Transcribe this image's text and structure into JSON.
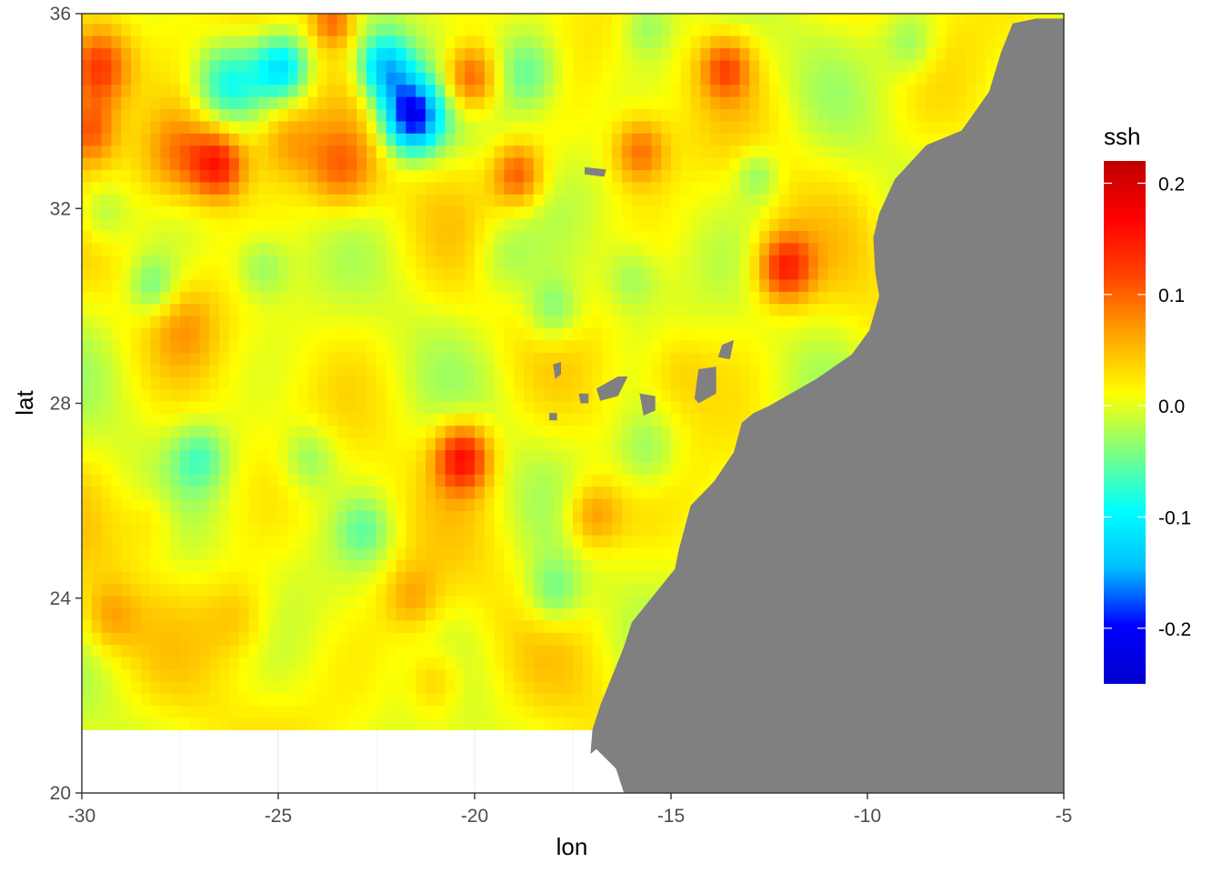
{
  "chart_data": {
    "type": "heatmap",
    "title": "",
    "xlabel": "lon",
    "ylabel": "lat",
    "xlim": [
      -30,
      -5
    ],
    "ylim": [
      20,
      36
    ],
    "x_ticks": [
      -30,
      -25,
      -20,
      -15,
      -10,
      -5
    ],
    "y_ticks": [
      20,
      24,
      28,
      32,
      36
    ],
    "x_tick_labels": [
      "-30",
      "-25",
      "-20",
      "-15",
      "-10",
      "-5"
    ],
    "y_tick_labels": [
      "20",
      "24",
      "28",
      "32",
      "36"
    ],
    "grid": true,
    "value_name": "ssh",
    "colorbar": {
      "title": "ssh",
      "range": [
        -0.25,
        0.22
      ],
      "ticks": [
        0.2,
        0.1,
        0.0,
        -0.1,
        -0.2
      ],
      "tick_labels": [
        "0.2",
        "0.1",
        "0.0",
        "-0.1",
        "-0.2"
      ],
      "colors": [
        "#0000CD",
        "#0000FF",
        "#00BFFF",
        "#00FFFF",
        "#7FFF7F",
        "#FFFF00",
        "#FFA500",
        "#FF4500",
        "#FF0000",
        "#C00000"
      ],
      "placement": "right"
    },
    "data_extent": {
      "lon": [
        -30,
        -5
      ],
      "lat": [
        21.3,
        36
      ]
    },
    "background_value": 0.01,
    "features": [
      {
        "lon": -29.6,
        "lat": 34.9,
        "value": 0.14,
        "radius": 0.6
      },
      {
        "lon": -29.8,
        "lat": 33.6,
        "value": 0.1,
        "radius": 0.5
      },
      {
        "lon": -26.5,
        "lat": 32.9,
        "value": 0.13,
        "radius": 0.5
      },
      {
        "lon": -27.5,
        "lat": 33.1,
        "value": 0.08,
        "radius": 0.7
      },
      {
        "lon": -23.4,
        "lat": 32.8,
        "value": 0.08,
        "radius": 0.6
      },
      {
        "lon": -24.8,
        "lat": 33.4,
        "value": 0.06,
        "radius": 0.6
      },
      {
        "lon": -23.6,
        "lat": 35.9,
        "value": 0.09,
        "radius": 0.4
      },
      {
        "lon": -24.9,
        "lat": 34.9,
        "value": -0.12,
        "radius": 0.5
      },
      {
        "lon": -26.3,
        "lat": 34.6,
        "value": -0.09,
        "radius": 0.6
      },
      {
        "lon": -22.3,
        "lat": 34.9,
        "value": -0.15,
        "radius": 0.5
      },
      {
        "lon": -21.6,
        "lat": 33.9,
        "value": -0.22,
        "radius": 0.55
      },
      {
        "lon": -20.1,
        "lat": 34.7,
        "value": 0.12,
        "radius": 0.5
      },
      {
        "lon": -18.6,
        "lat": 34.8,
        "value": -0.07,
        "radius": 0.6
      },
      {
        "lon": -18.9,
        "lat": 32.7,
        "value": 0.1,
        "radius": 0.45
      },
      {
        "lon": -15.8,
        "lat": 33.2,
        "value": 0.09,
        "radius": 0.5
      },
      {
        "lon": -13.6,
        "lat": 34.9,
        "value": 0.09,
        "radius": 0.45
      },
      {
        "lon": -12.1,
        "lat": 30.8,
        "value": 0.13,
        "radius": 0.5
      },
      {
        "lon": -20.3,
        "lat": 26.9,
        "value": 0.15,
        "radius": 0.5
      },
      {
        "lon": -17.0,
        "lat": 25.7,
        "value": 0.07,
        "radius": 0.5
      },
      {
        "lon": -18.0,
        "lat": 29.9,
        "value": -0.06,
        "radius": 0.5
      },
      {
        "lon": -28.2,
        "lat": 30.4,
        "value": -0.06,
        "radius": 0.45
      },
      {
        "lon": -25.4,
        "lat": 30.8,
        "value": -0.05,
        "radius": 0.5
      },
      {
        "lon": -29.5,
        "lat": 31.9,
        "value": -0.05,
        "radius": 0.5
      },
      {
        "lon": -27.4,
        "lat": 29.6,
        "value": 0.04,
        "radius": 0.6
      },
      {
        "lon": -27.0,
        "lat": 26.9,
        "value": -0.06,
        "radius": 0.5
      },
      {
        "lon": -24.2,
        "lat": 26.9,
        "value": -0.05,
        "radius": 0.5
      },
      {
        "lon": -21.6,
        "lat": 24.0,
        "value": 0.05,
        "radius": 0.5
      },
      {
        "lon": -22.8,
        "lat": 25.4,
        "value": -0.05,
        "radius": 0.5
      },
      {
        "lon": -18.0,
        "lat": 24.1,
        "value": -0.06,
        "radius": 0.5
      },
      {
        "lon": -21.0,
        "lat": 22.3,
        "value": 0.05,
        "radius": 0.5
      },
      {
        "lon": -15.6,
        "lat": 27.0,
        "value": -0.05,
        "radius": 0.6
      },
      {
        "lon": -16.0,
        "lat": 30.6,
        "value": -0.04,
        "radius": 0.5
      },
      {
        "lon": -19.3,
        "lat": 31.0,
        "value": -0.04,
        "radius": 0.6
      },
      {
        "lon": -12.8,
        "lat": 32.7,
        "value": -0.05,
        "radius": 0.4
      },
      {
        "lon": -15.6,
        "lat": 35.8,
        "value": -0.05,
        "radius": 0.5
      },
      {
        "lon": -8.9,
        "lat": 35.4,
        "value": -0.05,
        "radius": 0.5
      },
      {
        "lon": -26.0,
        "lat": 23.6,
        "value": 0.04,
        "radius": 0.6
      },
      {
        "lon": -29.3,
        "lat": 23.6,
        "value": 0.05,
        "radius": 0.5
      },
      {
        "lon": -28.2,
        "lat": 25.6,
        "value": 0.03,
        "radius": 0.5
      },
      {
        "lon": -14.9,
        "lat": 28.7,
        "value": 0.03,
        "radius": 0.6
      }
    ],
    "land_color": "#808080",
    "land_coastline": [
      [
        -5.7,
        35.9
      ],
      [
        -6.3,
        35.8
      ],
      [
        -6.6,
        35.2
      ],
      [
        -6.9,
        34.4
      ],
      [
        -7.6,
        33.6
      ],
      [
        -8.5,
        33.3
      ],
      [
        -9.3,
        32.6
      ],
      [
        -9.7,
        31.9
      ],
      [
        -9.85,
        31.4
      ],
      [
        -9.8,
        30.7
      ],
      [
        -9.7,
        30.2
      ],
      [
        -9.95,
        29.5
      ],
      [
        -10.4,
        29.0
      ],
      [
        -11.3,
        28.5
      ],
      [
        -12.5,
        27.95
      ],
      [
        -12.9,
        27.8
      ],
      [
        -13.2,
        27.6
      ],
      [
        -13.4,
        27.0
      ],
      [
        -13.9,
        26.4
      ],
      [
        -14.5,
        25.9
      ],
      [
        -14.8,
        25.0
      ],
      [
        -14.9,
        24.6
      ],
      [
        -15.5,
        24.0
      ],
      [
        -16.0,
        23.5
      ],
      [
        -16.2,
        23.0
      ],
      [
        -16.5,
        22.4
      ],
      [
        -16.8,
        21.8
      ],
      [
        -17.0,
        21.3
      ],
      [
        -17.05,
        20.8
      ],
      [
        -16.9,
        20.9
      ],
      [
        -16.4,
        20.5
      ],
      [
        -16.2,
        20.0
      ],
      [
        -6.0,
        20.0
      ],
      [
        -5.0,
        20.0
      ],
      [
        -5.0,
        35.9
      ]
    ],
    "islands": [
      [
        [
          -18.0,
          28.8
        ],
        [
          -17.8,
          28.85
        ],
        [
          -17.8,
          28.6
        ],
        [
          -17.95,
          28.5
        ]
      ],
      [
        [
          -16.9,
          28.3
        ],
        [
          -16.35,
          28.55
        ],
        [
          -16.1,
          28.55
        ],
        [
          -16.35,
          28.15
        ],
        [
          -16.8,
          28.05
        ]
      ],
      [
        [
          -15.8,
          28.2
        ],
        [
          -15.4,
          28.15
        ],
        [
          -15.4,
          27.85
        ],
        [
          -15.7,
          27.75
        ]
      ],
      [
        [
          -14.3,
          28.7
        ],
        [
          -13.85,
          28.75
        ],
        [
          -13.85,
          28.2
        ],
        [
          -14.3,
          28.0
        ],
        [
          -14.4,
          28.1
        ]
      ],
      [
        [
          -13.7,
          29.2
        ],
        [
          -13.4,
          29.3
        ],
        [
          -13.5,
          28.9
        ],
        [
          -13.8,
          28.95
        ]
      ],
      [
        [
          -17.35,
          28.2
        ],
        [
          -17.1,
          28.2
        ],
        [
          -17.1,
          28.0
        ],
        [
          -17.3,
          28.0
        ]
      ],
      [
        [
          -18.1,
          27.8
        ],
        [
          -17.9,
          27.8
        ],
        [
          -17.9,
          27.65
        ],
        [
          -18.1,
          27.65
        ]
      ],
      [
        [
          -17.2,
          32.85
        ],
        [
          -16.65,
          32.8
        ],
        [
          -16.7,
          32.65
        ],
        [
          -17.2,
          32.7
        ]
      ]
    ]
  }
}
